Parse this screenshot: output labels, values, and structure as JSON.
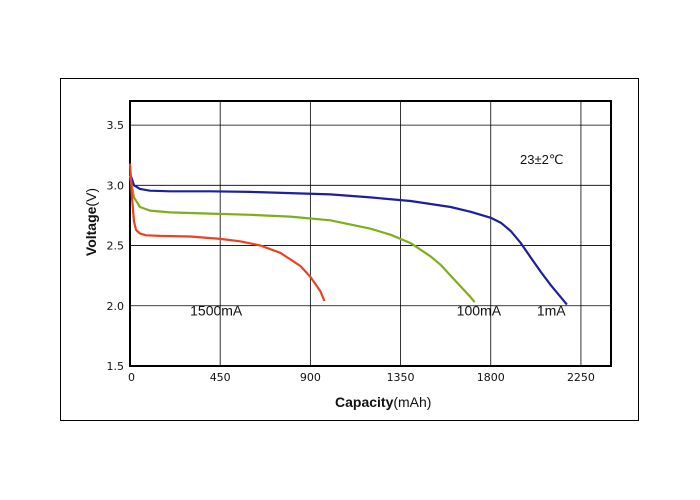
{
  "chart_data": {
    "type": "line",
    "title": "",
    "xlabel_bold": "Capacity",
    "xlabel_unit": "(mAh)",
    "ylabel_bold": "Voltage",
    "ylabel_unit": "(V)",
    "xlim": [
      0,
      2400
    ],
    "ylim": [
      1.5,
      3.7
    ],
    "x_ticks": [
      0,
      450,
      900,
      1350,
      1800,
      2250
    ],
    "y_ticks": [
      "1.5",
      "2.0",
      "2.5",
      "3.0",
      "3.5"
    ],
    "y_tick_values": [
      1.5,
      2.0,
      2.5,
      3.0,
      3.5
    ],
    "grid": true,
    "annotation": "23±2℃",
    "series": [
      {
        "name": "1mA",
        "color": "#1c1fa0",
        "x": [
          0,
          20,
          50,
          100,
          200,
          400,
          600,
          800,
          1000,
          1200,
          1400,
          1600,
          1700,
          1800,
          1850,
          1900,
          1950,
          2000,
          2050,
          2100,
          2150,
          2180
        ],
        "y": [
          3.1,
          3.0,
          2.97,
          2.955,
          2.95,
          2.95,
          2.945,
          2.935,
          2.925,
          2.9,
          2.87,
          2.82,
          2.78,
          2.73,
          2.69,
          2.62,
          2.52,
          2.4,
          2.28,
          2.17,
          2.07,
          2.01
        ]
      },
      {
        "name": "100mA",
        "color": "#7fad1c",
        "x": [
          0,
          20,
          50,
          100,
          200,
          400,
          600,
          800,
          1000,
          1200,
          1300,
          1400,
          1500,
          1550,
          1600,
          1650,
          1700,
          1720
        ],
        "y": [
          3.08,
          2.9,
          2.82,
          2.79,
          2.775,
          2.765,
          2.755,
          2.74,
          2.71,
          2.64,
          2.59,
          2.52,
          2.41,
          2.34,
          2.25,
          2.16,
          2.07,
          2.03
        ]
      },
      {
        "name": "1500mA",
        "color": "#ee4123",
        "x": [
          0,
          10,
          20,
          30,
          50,
          80,
          150,
          300,
          450,
          550,
          650,
          750,
          850,
          900,
          950,
          970
        ],
        "y": [
          3.18,
          2.9,
          2.7,
          2.63,
          2.6,
          2.585,
          2.58,
          2.575,
          2.555,
          2.535,
          2.5,
          2.44,
          2.33,
          2.24,
          2.12,
          2.04
        ]
      }
    ],
    "labels": [
      {
        "text": "1500mA",
        "x": 300,
        "y": 1.92
      },
      {
        "text": "100mA",
        "x": 1630,
        "y": 1.92
      },
      {
        "text": "1mA",
        "x": 2030,
        "y": 1.92
      }
    ]
  }
}
